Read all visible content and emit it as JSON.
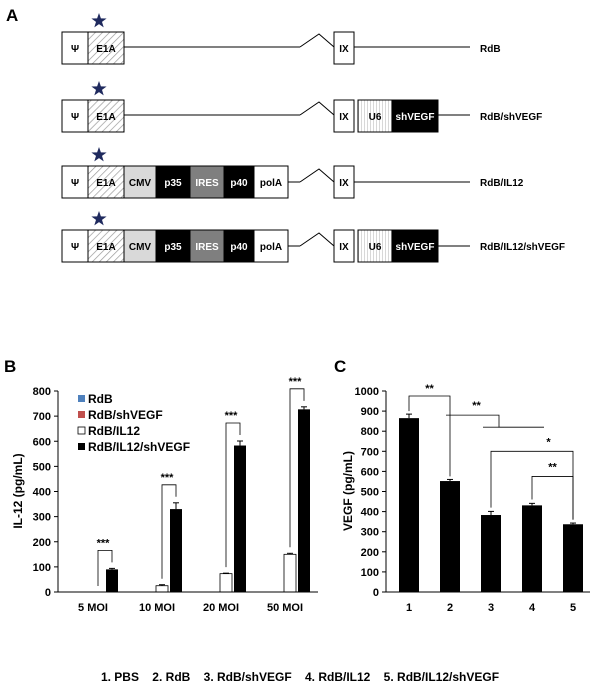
{
  "panels": {
    "a": "A",
    "b": "B",
    "c": "C"
  },
  "panel_a": {
    "constructs": [
      {
        "name": "RdB",
        "segments": [
          "Ψ",
          "E1A",
          "IX"
        ]
      },
      {
        "name": "RdB/shVEGF",
        "segments": [
          "Ψ",
          "E1A",
          "IX",
          "U6",
          "shVEGF"
        ]
      },
      {
        "name": "RdB/IL12",
        "segments": [
          "Ψ",
          "E1A",
          "CMV",
          "p35",
          "IRES",
          "p40",
          "polA",
          "IX"
        ]
      },
      {
        "name": "RdB/IL12/shVEGF",
        "segments": [
          "Ψ",
          "E1A",
          "CMV",
          "p35",
          "IRES",
          "p40",
          "polA",
          "IX",
          "U6",
          "shVEGF"
        ]
      }
    ],
    "colors": {
      "star": "#1f2a5e",
      "cmv": "#d9d9d9",
      "ires": "#7f7f7f",
      "black": "#000000"
    }
  },
  "chart_data": [
    {
      "type": "bar",
      "panel": "B",
      "ylabel": "IL-12 (pg/mL)",
      "ylim": [
        0,
        800
      ],
      "yticks": [
        "0",
        "100",
        "200",
        "300",
        "400",
        "500",
        "600",
        "700",
        "800"
      ],
      "categories": [
        "5 MOI",
        "10 MOI",
        "20 MOI",
        "50 MOI"
      ],
      "legend": [
        "RdB",
        "RdB/shVEGF",
        "RdB/IL12",
        "RdB/IL12/shVEGF"
      ],
      "legend_colors": [
        "#4f81bd",
        "#c0504d",
        "#ffffff",
        "#000000"
      ],
      "series": [
        {
          "name": "RdB",
          "values": [
            0,
            0,
            0,
            0
          ],
          "errors": [
            0,
            0,
            0,
            0
          ]
        },
        {
          "name": "RdB/shVEGF",
          "values": [
            0,
            0,
            0,
            0
          ],
          "errors": [
            0,
            0,
            0,
            0
          ]
        },
        {
          "name": "RdB/IL12",
          "values": [
            0,
            25,
            73,
            150
          ],
          "errors": [
            0,
            4,
            2,
            4
          ]
        },
        {
          "name": "RdB/IL12/shVEGF",
          "values": [
            90,
            330,
            583,
            727
          ],
          "errors": [
            4,
            25,
            18,
            10
          ]
        }
      ],
      "significance": [
        "***",
        "***",
        "***",
        "***"
      ]
    },
    {
      "type": "bar",
      "panel": "C",
      "ylabel": "VEGF (pg/mL)",
      "ylim": [
        0,
        1000
      ],
      "yticks": [
        "0",
        "100",
        "200",
        "300",
        "400",
        "500",
        "600",
        "700",
        "800",
        "900",
        "1000"
      ],
      "categories": [
        "1",
        "2",
        "3",
        "4",
        "5"
      ],
      "values": [
        865,
        552,
        383,
        431,
        337
      ],
      "errors": [
        20,
        8,
        18,
        10,
        6
      ],
      "significance": [
        "**",
        "**",
        "*",
        "**"
      ]
    }
  ],
  "caption": "1. PBS    2. RdB    3. RdB/shVEGF    4. RdB/IL12    5. RdB/IL12/shVEGF"
}
